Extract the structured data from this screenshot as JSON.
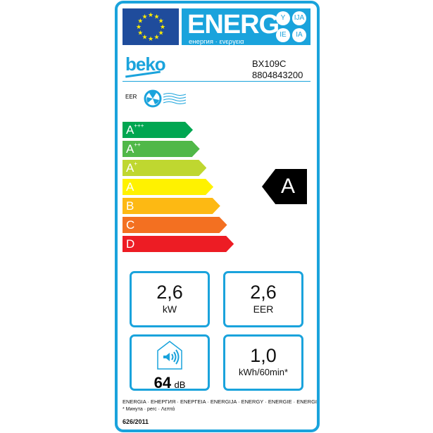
{
  "header": {
    "energ": "ENERG",
    "subtitle": "енергия · ενεργεια",
    "circles": [
      "Y",
      "IJA",
      "IE",
      "IA"
    ]
  },
  "brand": "beko",
  "model": "BX109C",
  "code": "8804843200",
  "eer_label": "EER",
  "scale": [
    {
      "cls": "A",
      "sup": "+++",
      "color": "#00a651"
    },
    {
      "cls": "A",
      "sup": "++",
      "color": "#50b848"
    },
    {
      "cls": "A",
      "sup": "+",
      "color": "#bfd730"
    },
    {
      "cls": "A",
      "sup": "",
      "color": "#fff200"
    },
    {
      "cls": "B",
      "sup": "",
      "color": "#fdb913"
    },
    {
      "cls": "C",
      "sup": "",
      "color": "#f37021"
    },
    {
      "cls": "D",
      "sup": "",
      "color": "#ed1c24"
    }
  ],
  "rating": "A",
  "boxes": {
    "power": {
      "value": "2,6",
      "unit": "kW"
    },
    "eer": {
      "value": "2,6",
      "unit": "EER"
    },
    "noise": {
      "value": "64",
      "unit": "dB"
    },
    "consumption": {
      "value": "1,0",
      "unit": "kWh/60min*"
    }
  },
  "footer": {
    "line1": "ENERGIA · ЕНЕРГИЯ · ΕΝΕΡΓΕΙΑ · ENERGIJA · ENERGY · ENERGIE · ENERGI",
    "line2": "* Минута · perc · Λεπτά",
    "regulation": "626/2011"
  },
  "colors": {
    "border": "#1aa3dc"
  }
}
